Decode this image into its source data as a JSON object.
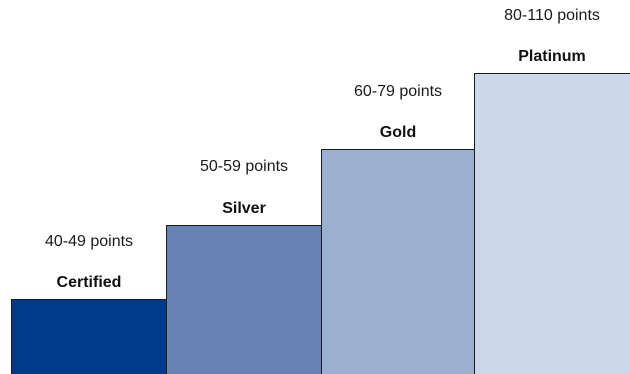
{
  "tiers": [
    {
      "name": "Certified",
      "range": "40-49 points",
      "color": "#003a8c"
    },
    {
      "name": "Silver",
      "range": "50-59 points",
      "color": "#6683b4"
    },
    {
      "name": "Gold",
      "range": "60-79 points",
      "color": "#9bb0d0"
    },
    {
      "name": "Platinum",
      "range": "80-110 points",
      "color": "#ccd8e7"
    }
  ]
}
